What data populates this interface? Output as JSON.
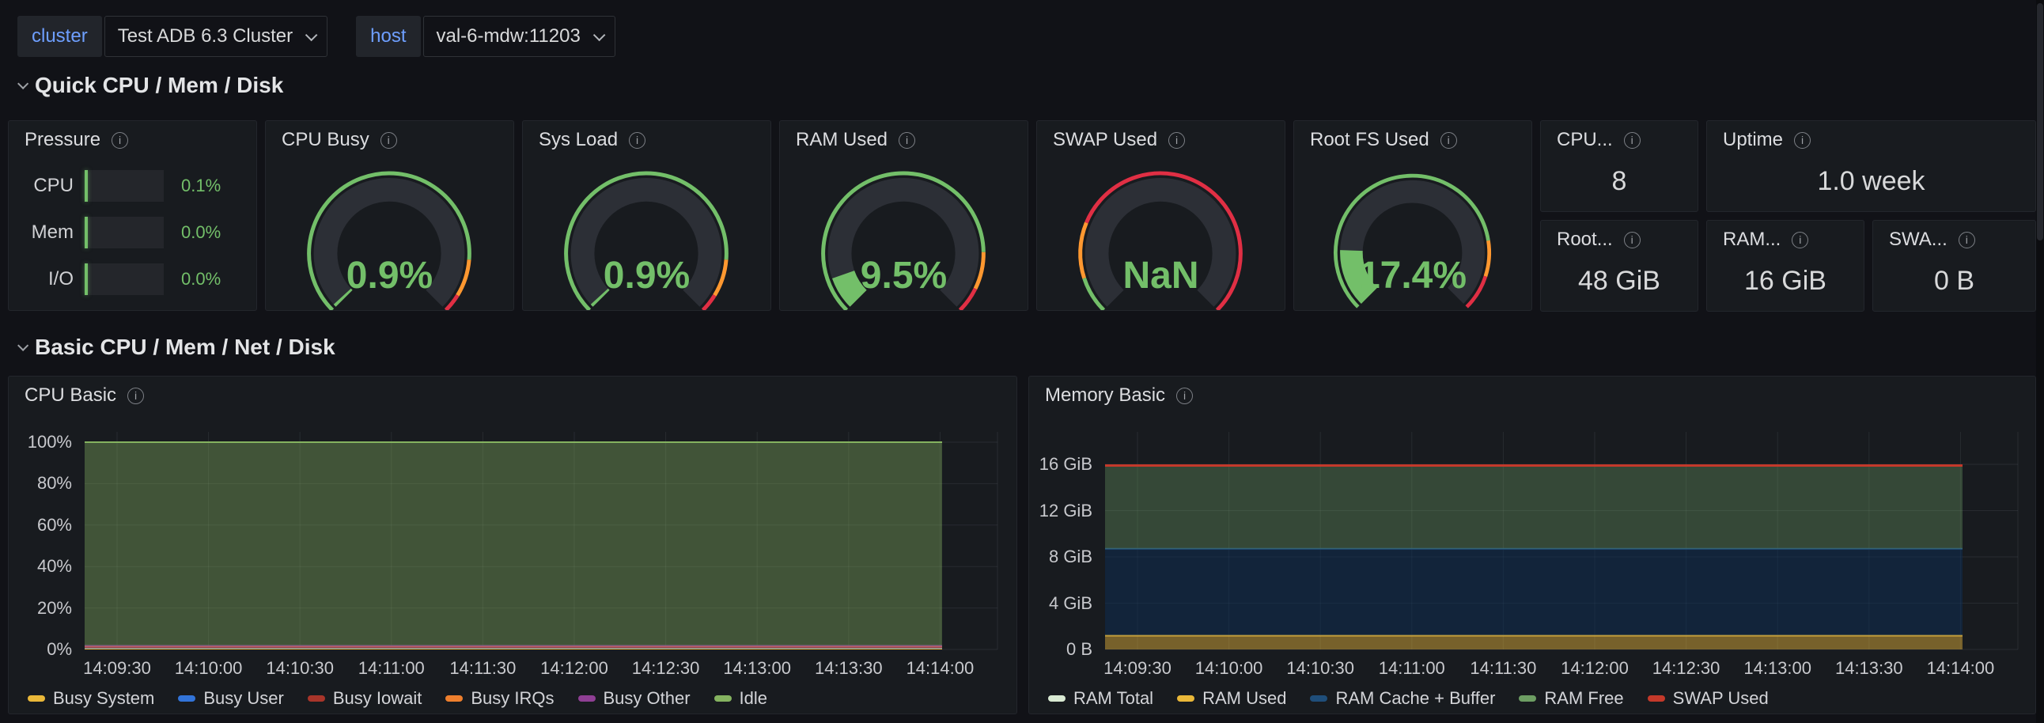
{
  "colors": {
    "accent_green": "#73bf69",
    "variable_label_blue": "#6e9fff",
    "threshold_orange": "#ff9830",
    "threshold_red": "#e02f44"
  },
  "variables": {
    "cluster": {
      "label": "cluster",
      "value": "Test ADB 6.3 Cluster"
    },
    "host": {
      "label": "host",
      "value": "val-6-mdw:11203"
    }
  },
  "sections": {
    "quick": "Quick CPU / Mem / Disk",
    "basic": "Basic CPU / Mem / Net / Disk"
  },
  "pressure": {
    "title": "Pressure",
    "rows": [
      {
        "label": "CPU",
        "value": "0.1%"
      },
      {
        "label": "Mem",
        "value": "0.0%"
      },
      {
        "label": "I/O",
        "value": "0.0%"
      }
    ]
  },
  "gauges": [
    {
      "title": "CPU Busy",
      "value_text": "0.9%",
      "percent": 0.9,
      "thresholds": [
        {
          "to": 85,
          "color": "#73bf69"
        },
        {
          "to": 95,
          "color": "#ff9830"
        },
        {
          "to": 100,
          "color": "#e02f44"
        }
      ]
    },
    {
      "title": "Sys Load",
      "value_text": "0.9%",
      "percent": 0.9,
      "thresholds": [
        {
          "to": 85,
          "color": "#73bf69"
        },
        {
          "to": 95,
          "color": "#ff9830"
        },
        {
          "to": 100,
          "color": "#e02f44"
        }
      ]
    },
    {
      "title": "RAM Used",
      "value_text": "9.5%",
      "percent": 9.5,
      "thresholds": [
        {
          "to": 83,
          "color": "#73bf69"
        },
        {
          "to": 93,
          "color": "#ff9830"
        },
        {
          "to": 100,
          "color": "#e02f44"
        }
      ]
    },
    {
      "title": "SWAP Used",
      "value_text": "NaN",
      "percent": null,
      "thresholds": [
        {
          "to": 10,
          "color": "#73bf69"
        },
        {
          "to": 25,
          "color": "#ff9830"
        },
        {
          "to": 100,
          "color": "#e02f44"
        }
      ]
    },
    {
      "title": "Root FS Used",
      "value_text": "17.4%",
      "percent": 17.4,
      "thresholds": [
        {
          "to": 80,
          "color": "#73bf69"
        },
        {
          "to": 90,
          "color": "#ff9830"
        },
        {
          "to": 100,
          "color": "#e02f44"
        }
      ]
    }
  ],
  "stats": [
    {
      "title": "CPU...",
      "value": "8"
    },
    {
      "title": "Uptime",
      "value": "1.0 week"
    },
    {
      "title": "Root...",
      "value": "48 GiB"
    },
    {
      "title": "RAM...",
      "value": "16 GiB"
    },
    {
      "title": "SWA...",
      "value": "0 B"
    }
  ],
  "chart_data": [
    {
      "type": "area",
      "title": "CPU Basic",
      "stacked": true,
      "grid": true,
      "legend_position": "bottom",
      "xlabel": "",
      "ylabel": "",
      "ylim": [
        0,
        100
      ],
      "x_ticks": [
        "14:09:30",
        "14:10:00",
        "14:10:30",
        "14:11:00",
        "14:11:30",
        "14:12:00",
        "14:12:30",
        "14:13:00",
        "14:13:30",
        "14:14:00"
      ],
      "y_ticks": [
        {
          "label": "0%",
          "value": 0
        },
        {
          "label": "20%",
          "value": 20
        },
        {
          "label": "40%",
          "value": 40
        },
        {
          "label": "60%",
          "value": 60
        },
        {
          "label": "80%",
          "value": 80
        },
        {
          "label": "100%",
          "value": 100
        }
      ],
      "series": [
        {
          "name": "Busy System",
          "color": "#eab839",
          "value": 0.4
        },
        {
          "name": "Busy User",
          "color": "#3274d9",
          "value": 0.5
        },
        {
          "name": "Busy Iowait",
          "color": "#a8352a",
          "value": 0.3
        },
        {
          "name": "Busy IRQs",
          "color": "#ee7f2d",
          "value": 0.3
        },
        {
          "name": "Busy Other",
          "color": "#8f3f94",
          "value": 0.2
        },
        {
          "name": "Idle",
          "color": "#85b360",
          "value": 98.3,
          "fill_opacity": 0.38
        }
      ]
    },
    {
      "type": "area",
      "title": "Memory Basic",
      "stacked": true,
      "grid": true,
      "legend_position": "bottom",
      "xlabel": "",
      "ylabel": "",
      "ylim": [
        0,
        18.6
      ],
      "unit": "GiB",
      "x_ticks": [
        "14:09:30",
        "14:10:00",
        "14:10:30",
        "14:11:00",
        "14:11:30",
        "14:12:00",
        "14:12:30",
        "14:13:00",
        "14:13:30",
        "14:14:00"
      ],
      "y_ticks": [
        {
          "label": "0 B",
          "value": 0
        },
        {
          "label": "4 GiB",
          "value": 4
        },
        {
          "label": "8 GiB",
          "value": 8
        },
        {
          "label": "12 GiB",
          "value": 12
        },
        {
          "label": "16 GiB",
          "value": 16
        }
      ],
      "series": [
        {
          "name": "RAM Total",
          "color": "#d9ead3",
          "value": 15.9,
          "overlay_line": true
        },
        {
          "name": "RAM Used",
          "color": "#eab839",
          "value": 1.2,
          "fill_opacity": 0.45
        },
        {
          "name": "RAM Cache + Buffer",
          "color": "#1f4e7a",
          "value": 7.5,
          "fill": "#0c2d55",
          "fill_opacity": 0.5
        },
        {
          "name": "RAM Free",
          "color": "#6d9e63",
          "value": 7.2,
          "fill_opacity": 0.35
        },
        {
          "name": "SWAP Used",
          "color": "#c4392a",
          "value": 0,
          "line_width": 3
        }
      ]
    }
  ]
}
